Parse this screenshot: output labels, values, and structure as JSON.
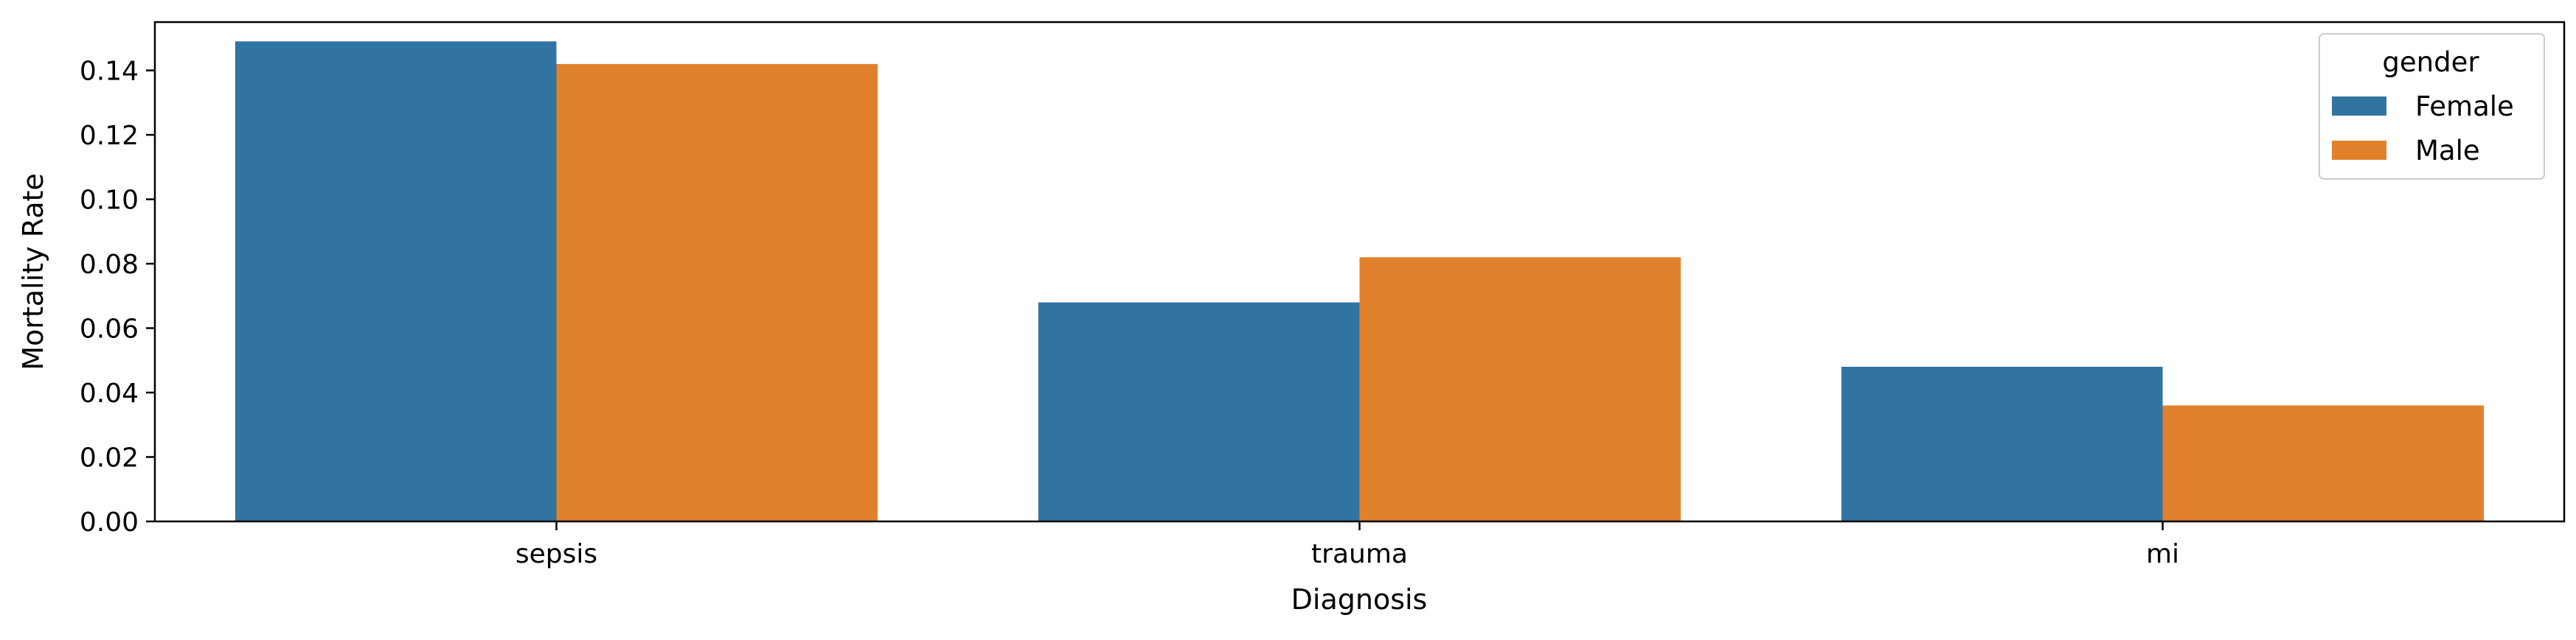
{
  "chart_data": {
    "type": "bar",
    "title": "",
    "xlabel": "Diagnosis",
    "ylabel": "Mortality Rate",
    "categories": [
      "sepsis",
      "trauma",
      "mi"
    ],
    "series": [
      {
        "name": "Female",
        "color": "#3274a1",
        "values": [
          0.149,
          0.068,
          0.048
        ]
      },
      {
        "name": "Male",
        "color": "#e1812c",
        "values": [
          0.142,
          0.082,
          0.036
        ]
      }
    ],
    "ylim": [
      0,
      0.155
    ],
    "yticks": [
      "0.00",
      "0.02",
      "0.04",
      "0.06",
      "0.08",
      "0.10",
      "0.12",
      "0.14"
    ],
    "grid": false,
    "legend": {
      "title": "gender",
      "placement": "top-right"
    }
  }
}
